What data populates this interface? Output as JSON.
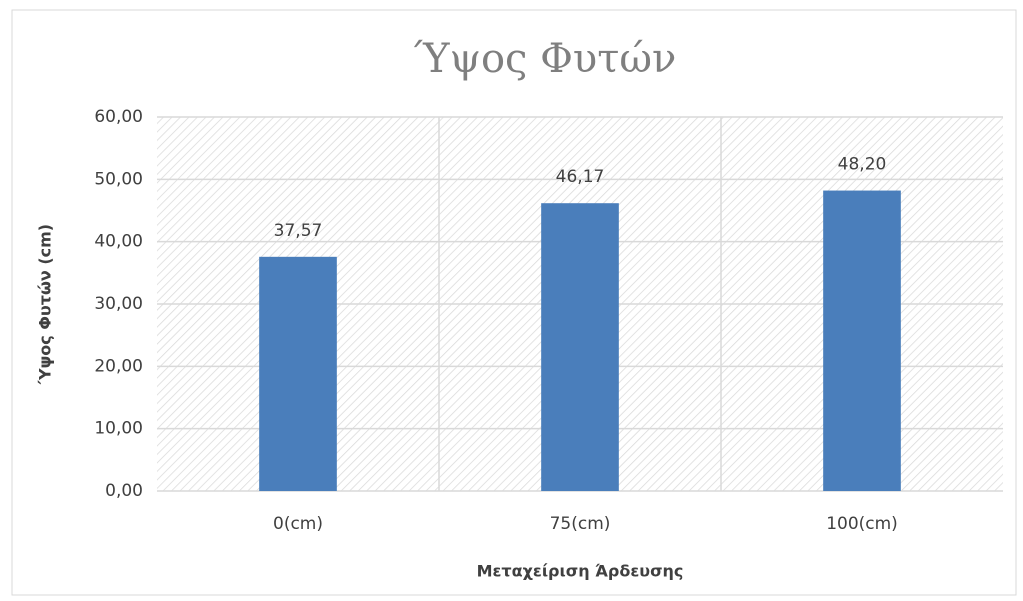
{
  "chart_data": {
    "type": "bar",
    "title": "Ύψος Φυτών",
    "x_label": "Μεταχείριση Άρδευσης",
    "y_label": "Ύψος Φυτών (cm)",
    "categories": [
      "0(cm)",
      "75(cm)",
      "100(cm)"
    ],
    "values": [
      37.57,
      46.17,
      48.2
    ],
    "value_labels": [
      "37,57",
      "46,17",
      "48,20"
    ],
    "color": "#4a7ebb",
    "ylim": [
      0,
      60
    ],
    "yticks": [
      {
        "value": 0,
        "label": "0,00"
      },
      {
        "value": 10,
        "label": "10,00"
      },
      {
        "value": 20,
        "label": "20,00"
      },
      {
        "value": 30,
        "label": "30,00"
      },
      {
        "value": 40,
        "label": "40,00"
      },
      {
        "value": 50,
        "label": "50,00"
      },
      {
        "value": 60,
        "label": "60,00"
      }
    ],
    "grid": true
  }
}
